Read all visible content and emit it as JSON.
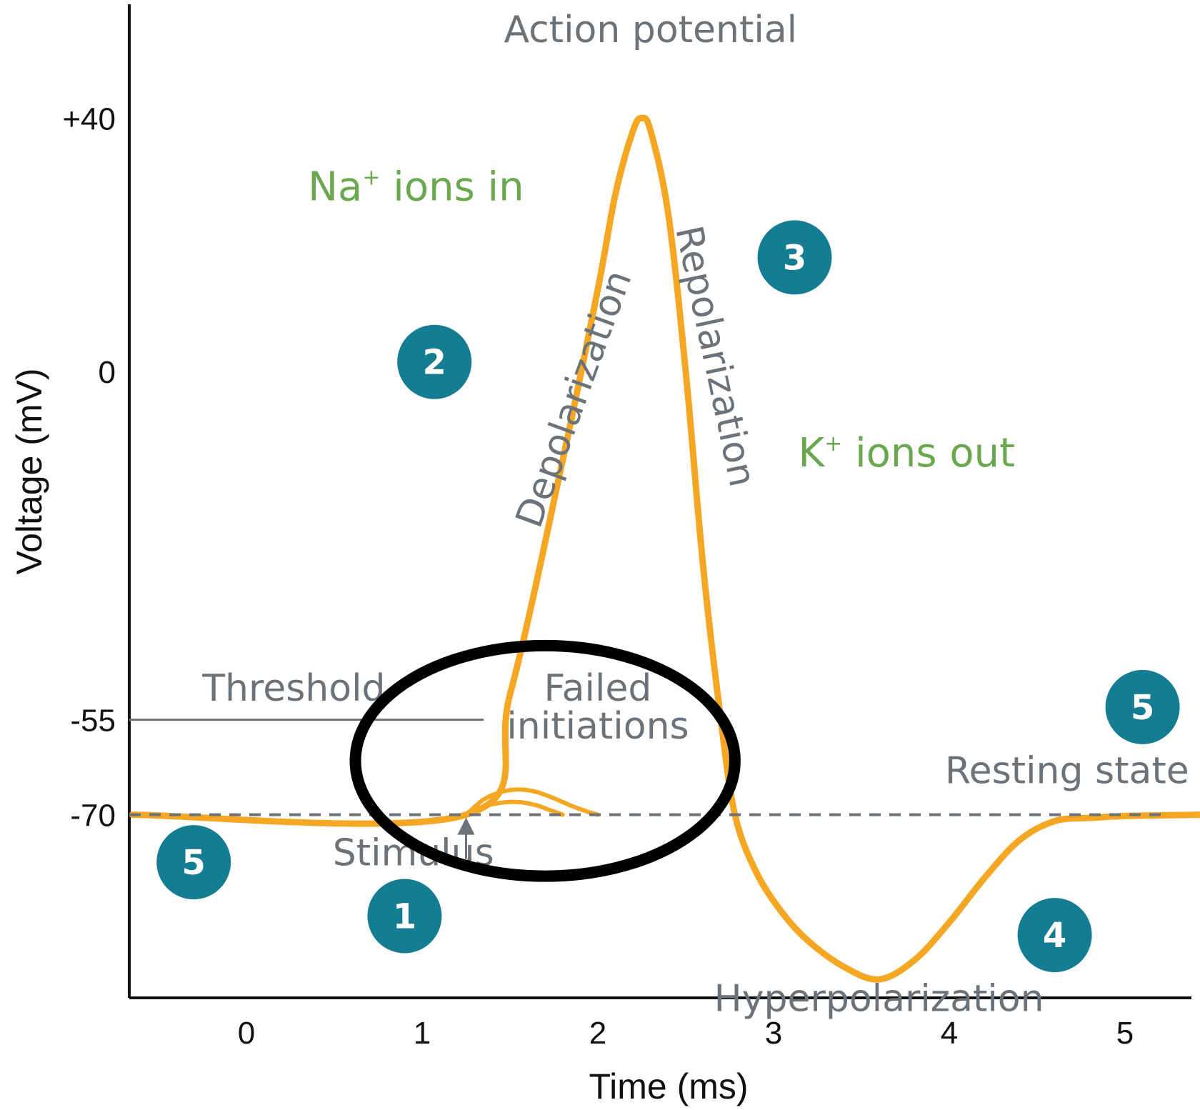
{
  "colors": {
    "curve": "#f5a623",
    "badge": "#147d91",
    "ion_text": "#6aa84f",
    "annotation": "#6b7278",
    "axis": "#111111",
    "highlight": "#000000"
  },
  "chart_data": {
    "type": "line",
    "xlabel": "Time (ms)",
    "ylabel": "Voltage (mV)",
    "xlim": [
      -0.65,
      5.45
    ],
    "ylim": [
      -100,
      65
    ],
    "x_ticks": [
      0,
      1,
      2,
      3,
      4,
      5
    ],
    "y_ticks": [
      {
        "value": 40,
        "label": "+40"
      },
      {
        "value": 0,
        "label": "0"
      },
      {
        "value": -55,
        "label": "-55"
      },
      {
        "value": -70,
        "label": "-70"
      }
    ],
    "grid": false,
    "threshold": {
      "value": -55,
      "label": "Threshold"
    },
    "resting": {
      "value": -70,
      "label": "Resting state"
    },
    "series": [
      {
        "role": "action-potential",
        "x": [
          -0.65,
          1.25,
          1.5,
          1.8,
          2.0,
          2.1,
          2.2,
          2.25,
          2.3,
          2.4,
          2.5,
          2.6,
          2.7,
          2.78,
          2.9,
          3.05,
          3.2,
          3.4,
          3.6,
          3.8,
          4.0,
          4.2,
          4.4,
          4.6,
          4.8,
          5.0,
          5.2,
          5.45
        ],
        "y": [
          -70,
          -70,
          -51,
          -14,
          13,
          28,
          38,
          40,
          38,
          25,
          0,
          -31,
          -55,
          -70,
          -79,
          -85.5,
          -90,
          -94,
          -96,
          -93,
          -87,
          -80,
          -74,
          -71,
          -70.5,
          -70.2,
          -70.1,
          -70
        ]
      },
      {
        "role": "failed-initiation",
        "x": [
          1.25,
          1.35,
          1.45,
          1.55,
          1.65,
          1.75,
          1.85,
          1.95,
          2.0
        ],
        "y": [
          -70,
          -67.6,
          -66.4,
          -66.0,
          -66.4,
          -67.4,
          -68.6,
          -69.6,
          -70
        ]
      },
      {
        "role": "failed-initiation",
        "x": [
          1.25,
          1.35,
          1.45,
          1.55,
          1.65,
          1.72,
          1.8
        ],
        "y": [
          -70,
          -68.7,
          -68.1,
          -68.0,
          -68.5,
          -69.2,
          -70
        ]
      }
    ],
    "annotations": [
      {
        "text": "Action potential",
        "x": 2.3,
        "y": 52
      },
      {
        "text": "Depolarization",
        "x": 1.93,
        "y": -5,
        "rotate": -70
      },
      {
        "text": "Repolarization",
        "x": 2.6,
        "y": 2,
        "rotate": 78
      },
      {
        "text": "Failed",
        "x": 2.0,
        "y": -52
      },
      {
        "text": "initiations",
        "x": 2.0,
        "y": -58
      },
      {
        "text": "Threshold",
        "x": 0.27,
        "y": -52
      },
      {
        "text": "Stimulus",
        "x": 0.95,
        "y": -78
      },
      {
        "text": "Resting state",
        "x": 4.67,
        "y": -65
      },
      {
        "text": "Hyperpolarization",
        "x": 3.6,
        "y": -101
      }
    ],
    "ion_labels": [
      {
        "text": "Na",
        "sup": "+",
        "tail": " ions in",
        "x": 0.35,
        "y": 27
      },
      {
        "text": "K",
        "sup": "+",
        "tail": " ions out",
        "x": 3.14,
        "y": -15
      }
    ],
    "badges": [
      {
        "label": "1",
        "x": 0.9,
        "y": -86
      },
      {
        "label": "2",
        "x": 1.07,
        "y": 1.5
      },
      {
        "label": "3",
        "x": 3.12,
        "y": 18
      },
      {
        "label": "4",
        "x": 4.6,
        "y": -89
      },
      {
        "label": "5",
        "x": -0.3,
        "y": -77.5
      },
      {
        "label": "5",
        "x": 5.1,
        "y": -53
      }
    ],
    "stimulus_arrow": {
      "x": 1.25,
      "y_from": -77,
      "y_to": -70
    },
    "highlight_ellipse": {
      "cx": 1.7,
      "cy": -61.5,
      "rx": 1.08,
      "ry": 18.2
    }
  }
}
